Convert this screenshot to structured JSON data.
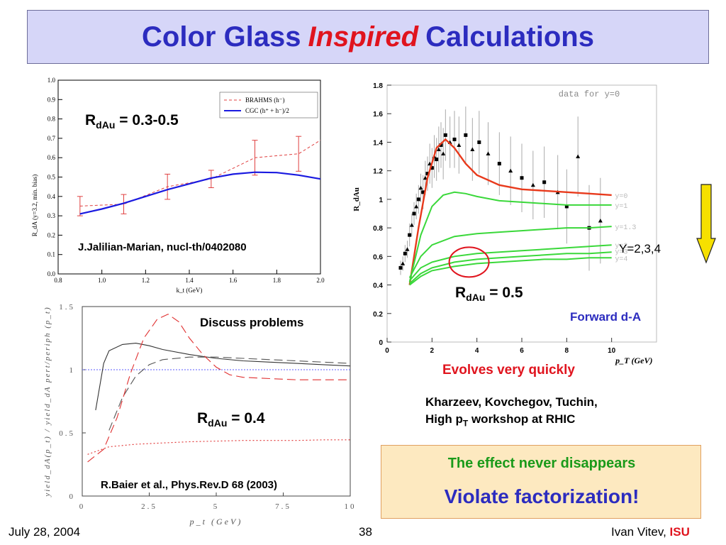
{
  "header": {
    "title_part1": "Color Glass",
    "title_part2": "Inspired",
    "title_part3": "Calculations"
  },
  "annotations": {
    "rdau_03_05": {
      "main": "R",
      "sub": "dAu",
      "rest": " = 0.3-0.5"
    },
    "jalilian_ref": "J.Jalilian-Marian, nucl-th/0402080",
    "discuss": "Discuss problems",
    "rdau_04": {
      "main": "R",
      "sub": "dAu",
      "rest": " = 0.4"
    },
    "baier_ref": "R.Baier et al., Phys.Rev.D 68 (2003)",
    "rdau_05": {
      "main": "R",
      "sub": "dAu",
      "rest": " = 0.5"
    },
    "forward": "Forward d-A",
    "evolves": "Evolves very quickly",
    "y234": "Y=2,3,4",
    "kharzeev_line1": "Kharzeev, Kovchegov, Tuchin,",
    "kharzeev_line2_pre": "High p",
    "kharzeev_line2_sub": "T",
    "kharzeev_line2_post": " workshop at RHIC",
    "effect_line1": "The effect never disappears",
    "effect_line2": "Violate factorization!"
  },
  "footer": {
    "date": "July 28, 2004",
    "page": "38",
    "author": "Ivan Vitev, ",
    "affiliation": "ISU"
  },
  "colors": {
    "title_blue": "#2c2cbf",
    "title_red": "#e0141e",
    "green_text": "#1a9a1a",
    "box_fill": "#fde9c0"
  },
  "chart_data": [
    {
      "type": "line",
      "xlabel": "k_t (GeV)",
      "ylabel": "R_dA (y=3.2, min. bias)",
      "xlim": [
        0.8,
        2.0
      ],
      "ylim": [
        0.0,
        1.0
      ],
      "xticks": [
        "0.8",
        "1.0",
        "1.2",
        "1.4",
        "1.6",
        "1.8",
        "2.0"
      ],
      "yticks": [
        "0.0",
        "0.1",
        "0.2",
        "0.3",
        "0.4",
        "0.5",
        "0.6",
        "0.7",
        "0.8",
        "0.9",
        "1.0"
      ],
      "legend_position": "top-right",
      "legend": [
        "BRAHMS (h⁻)",
        "CGC (h⁺ + h⁻)/2"
      ],
      "series": [
        {
          "name": "BRAHMS (h⁻)",
          "style": "dashed",
          "color": "#e04040",
          "x": [
            0.9,
            1.1,
            1.3,
            1.5,
            1.7,
            1.9,
            2.0
          ],
          "y": [
            0.35,
            0.36,
            0.45,
            0.49,
            0.6,
            0.62,
            0.69
          ],
          "err": [
            0.05,
            0.05,
            0.065,
            0.045,
            0.09,
            0.09,
            0.0
          ]
        },
        {
          "name": "CGC (h⁺ + h⁻)/2",
          "style": "solid",
          "color": "#1a1ae0",
          "x": [
            0.9,
            1.0,
            1.1,
            1.2,
            1.3,
            1.4,
            1.5,
            1.6,
            1.7,
            1.8,
            1.9,
            2.0
          ],
          "y": [
            0.31,
            0.335,
            0.365,
            0.4,
            0.435,
            0.465,
            0.495,
            0.515,
            0.525,
            0.523,
            0.51,
            0.49
          ]
        }
      ]
    },
    {
      "type": "line",
      "xlabel": "p_t (GeV)",
      "ylabel": "yield_dA(p_t) / yield_dA pert/periph (p_t)",
      "xlim": [
        0,
        10
      ],
      "ylim": [
        0,
        1.5
      ],
      "xticks": [
        "0",
        "2.5",
        "5",
        "7.5",
        "10"
      ],
      "yticks": [
        "0",
        "0.5",
        "1",
        "1.5"
      ],
      "reference_line": 1.0,
      "series": [
        {
          "name": "",
          "style": "solid",
          "color": "#333333",
          "x": [
            0.5,
            0.8,
            1.0,
            1.5,
            2.0,
            2.5,
            3.0,
            4.0,
            5.0,
            6.0,
            7.0,
            8.0,
            9.0,
            10.0
          ],
          "y": [
            0.68,
            1.05,
            1.15,
            1.2,
            1.21,
            1.19,
            1.16,
            1.12,
            1.09,
            1.07,
            1.06,
            1.05,
            1.04,
            1.03
          ]
        },
        {
          "name": "",
          "style": "longdash",
          "color": "#555555",
          "x": [
            1.0,
            1.5,
            2.0,
            2.5,
            3.0,
            4.0,
            5.0,
            6.0,
            7.0,
            8.0,
            9.0,
            10.0
          ],
          "y": [
            0.52,
            0.78,
            0.95,
            1.04,
            1.08,
            1.1,
            1.1,
            1.09,
            1.08,
            1.07,
            1.06,
            1.05
          ]
        },
        {
          "name": "",
          "style": "longdash",
          "color": "#e03030",
          "x": [
            0.2,
            0.8,
            1.3,
            1.8,
            2.3,
            2.8,
            3.2,
            3.6,
            4.0,
            4.5,
            5.0,
            5.5,
            6.0,
            7.0,
            8.0,
            9.0,
            10.0
          ],
          "y": [
            0.27,
            0.37,
            0.62,
            0.97,
            1.25,
            1.4,
            1.44,
            1.38,
            1.25,
            1.12,
            1.02,
            0.96,
            0.94,
            0.93,
            0.92,
            0.92,
            0.92
          ]
        },
        {
          "name": "",
          "style": "dotted",
          "color": "#e03030",
          "x": [
            0.2,
            1.0,
            2.0,
            3.0,
            4.0,
            5.0,
            6.0,
            7.0,
            8.0,
            9.0,
            10.0
          ],
          "y": [
            0.33,
            0.39,
            0.41,
            0.42,
            0.43,
            0.435,
            0.44,
            0.44,
            0.44,
            0.445,
            0.445
          ]
        }
      ]
    },
    {
      "type": "line",
      "title": "data for y=0",
      "xlabel": "p_T (GeV)",
      "ylabel": "R_dAu",
      "xlim": [
        0,
        12
      ],
      "ylim": [
        0,
        1.8
      ],
      "xticks": [
        "0",
        "2",
        "4",
        "6",
        "8",
        "10"
      ],
      "yticks": [
        "0",
        "0.2",
        "0.4",
        "0.6",
        "0.8",
        "1",
        "1.2",
        "1.4",
        "1.6",
        "1.8"
      ],
      "legend": [
        "y=0",
        "y=1",
        "y=1.3",
        "y=2",
        "y=3",
        "y=4"
      ],
      "series": [
        {
          "name": "y=0",
          "color": "#e83a1c",
          "x": [
            1.0,
            1.4,
            1.8,
            2.2,
            2.6,
            3.0,
            3.5,
            4.0,
            5.0,
            6.0,
            7.0,
            8.0,
            9.0,
            10.0
          ],
          "y": [
            0.4,
            0.8,
            1.15,
            1.36,
            1.42,
            1.36,
            1.25,
            1.17,
            1.1,
            1.07,
            1.06,
            1.05,
            1.04,
            1.03
          ]
        },
        {
          "name": "y=1",
          "color": "#3ad83a",
          "x": [
            1.0,
            1.5,
            2.0,
            2.5,
            3.0,
            3.5,
            4.0,
            5.0,
            6.0,
            7.0,
            8.0,
            9.0,
            10.0
          ],
          "y": [
            0.42,
            0.75,
            0.95,
            1.03,
            1.05,
            1.04,
            1.02,
            0.99,
            0.98,
            0.97,
            0.96,
            0.96,
            0.96
          ]
        },
        {
          "name": "y=1.3",
          "color": "#3ad83a",
          "x": [
            1.0,
            1.5,
            2.0,
            3.0,
            4.0,
            5.0,
            6.0,
            7.0,
            8.0,
            9.0,
            10.0
          ],
          "y": [
            0.45,
            0.6,
            0.68,
            0.74,
            0.76,
            0.77,
            0.78,
            0.79,
            0.8,
            0.8,
            0.81
          ]
        },
        {
          "name": "y=2",
          "color": "#3ad83a",
          "x": [
            1.0,
            1.5,
            2.0,
            3.0,
            4.0,
            5.0,
            6.0,
            7.0,
            8.0,
            9.0,
            10.0
          ],
          "y": [
            0.43,
            0.52,
            0.56,
            0.6,
            0.62,
            0.63,
            0.64,
            0.65,
            0.66,
            0.67,
            0.68
          ]
        },
        {
          "name": "y=3",
          "color": "#3ad83a",
          "x": [
            1.0,
            1.5,
            2.0,
            3.0,
            4.0,
            5.0,
            6.0,
            7.0,
            8.0,
            9.0,
            10.0
          ],
          "y": [
            0.41,
            0.48,
            0.52,
            0.56,
            0.58,
            0.59,
            0.6,
            0.61,
            0.62,
            0.62,
            0.63
          ]
        },
        {
          "name": "y=4",
          "color": "#3ad83a",
          "x": [
            1.0,
            1.5,
            2.0,
            3.0,
            4.0,
            5.0,
            6.0,
            7.0,
            8.0,
            9.0,
            10.0
          ],
          "y": [
            0.4,
            0.46,
            0.5,
            0.53,
            0.55,
            0.56,
            0.57,
            0.58,
            0.58,
            0.59,
            0.59
          ]
        }
      ],
      "data_points": {
        "x": [
          0.6,
          0.7,
          0.8,
          0.9,
          1.0,
          1.1,
          1.2,
          1.3,
          1.4,
          1.5,
          1.6,
          1.7,
          1.8,
          1.9,
          2.0,
          2.1,
          2.2,
          2.3,
          2.4,
          2.5,
          2.6,
          2.8,
          3.0,
          3.2,
          3.5,
          3.8,
          4.1,
          4.5,
          5.0,
          5.5,
          6.0,
          6.5,
          7.0,
          7.6,
          8.0,
          8.5,
          9.0,
          9.5
        ],
        "y": [
          0.52,
          0.55,
          0.62,
          0.65,
          0.75,
          0.82,
          0.9,
          0.95,
          1.0,
          1.08,
          1.05,
          1.15,
          1.18,
          1.25,
          1.22,
          1.3,
          1.28,
          1.35,
          1.38,
          1.32,
          1.45,
          1.4,
          1.42,
          1.38,
          1.45,
          1.35,
          1.4,
          1.32,
          1.25,
          1.2,
          1.15,
          1.1,
          1.12,
          1.05,
          0.95,
          1.3,
          0.8,
          0.85
        ],
        "err": [
          0.05,
          0.05,
          0.06,
          0.06,
          0.08,
          0.08,
          0.08,
          0.09,
          0.1,
          0.1,
          0.12,
          0.12,
          0.12,
          0.14,
          0.14,
          0.15,
          0.15,
          0.16,
          0.16,
          0.18,
          0.18,
          0.18,
          0.2,
          0.2,
          0.2,
          0.22,
          0.22,
          0.22,
          0.22,
          0.24,
          0.24,
          0.24,
          0.25,
          0.26,
          0.26,
          0.28,
          0.3,
          0.3
        ]
      }
    }
  ]
}
